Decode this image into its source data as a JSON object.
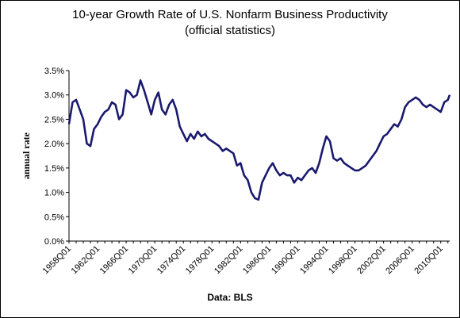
{
  "chart_data": {
    "type": "line",
    "title": "10-year Growth Rate of U.S. Nonfarm Business Productivity",
    "subtitle": "(official statistics)",
    "xlabel": "",
    "ylabel": "annual rate",
    "source": "Data: BLS",
    "ylim": [
      0,
      3.5
    ],
    "y_ticks": [
      "0.0%",
      "0.5%",
      "1.0%",
      "1.5%",
      "2.0%",
      "2.5%",
      "3.0%",
      "3.5%"
    ],
    "x_ticks": [
      "1958Q01",
      "1962Q01",
      "1966Q01",
      "1970Q01",
      "1974Q01",
      "1978Q01",
      "1982Q01",
      "1986Q01",
      "1990Q01",
      "1994Q01",
      "1998Q01",
      "2002Q01",
      "2006Q01",
      "2010Q01"
    ],
    "grid": false,
    "line_color": "#1a1a6e",
    "series": [
      {
        "x": [
          1958.0,
          1958.5,
          1959.0,
          1959.5,
          1960.0,
          1960.5,
          1961.0,
          1961.5,
          1962.0,
          1962.5,
          1963.0,
          1963.5,
          1964.0,
          1964.5,
          1965.0,
          1965.5,
          1966.0,
          1966.5,
          1967.0,
          1967.5,
          1968.0,
          1968.5,
          1969.0,
          1969.5,
          1970.0,
          1970.5,
          1971.0,
          1971.5,
          1972.0,
          1972.5,
          1973.0,
          1973.5,
          1974.0,
          1974.5,
          1975.0,
          1975.5,
          1976.0,
          1976.5,
          1977.0,
          1977.5,
          1978.0,
          1978.5,
          1979.0,
          1979.5,
          1980.0,
          1980.5,
          1981.0,
          1981.5,
          1982.0,
          1982.5,
          1983.0,
          1983.5,
          1984.0,
          1984.5,
          1985.0,
          1985.5,
          1986.0,
          1986.5,
          1987.0,
          1987.5,
          1988.0,
          1988.5,
          1989.0,
          1989.5,
          1990.0,
          1990.5,
          1991.0,
          1991.5,
          1992.0,
          1992.5,
          1993.0,
          1993.5,
          1994.0,
          1994.5,
          1995.0,
          1995.5,
          1996.0,
          1996.5,
          1997.0,
          1997.5,
          1998.0,
          1998.5,
          1999.0,
          1999.5,
          2000.0,
          2000.5,
          2001.0,
          2001.5,
          2002.0,
          2002.5,
          2003.0,
          2003.5,
          2004.0,
          2004.5,
          2005.0,
          2005.5,
          2006.0,
          2006.5,
          2007.0,
          2007.5,
          2008.0,
          2008.5,
          2009.0,
          2009.5,
          2010.0,
          2010.5,
          2011.0,
          2011.25
        ],
        "values": [
          2.4,
          2.85,
          2.9,
          2.7,
          2.5,
          2.0,
          1.95,
          2.3,
          2.4,
          2.55,
          2.65,
          2.7,
          2.85,
          2.8,
          2.5,
          2.6,
          3.1,
          3.05,
          2.95,
          3.0,
          3.3,
          3.1,
          2.85,
          2.6,
          2.9,
          3.05,
          2.7,
          2.6,
          2.8,
          2.9,
          2.7,
          2.35,
          2.2,
          2.05,
          2.2,
          2.1,
          2.25,
          2.15,
          2.2,
          2.1,
          2.05,
          2.0,
          1.95,
          1.85,
          1.9,
          1.85,
          1.8,
          1.55,
          1.6,
          1.35,
          1.25,
          1.0,
          0.88,
          0.85,
          1.2,
          1.35,
          1.5,
          1.6,
          1.45,
          1.35,
          1.4,
          1.35,
          1.35,
          1.2,
          1.3,
          1.25,
          1.35,
          1.45,
          1.5,
          1.4,
          1.6,
          1.9,
          2.15,
          2.05,
          1.7,
          1.65,
          1.7,
          1.6,
          1.55,
          1.5,
          1.45,
          1.45,
          1.5,
          1.55,
          1.65,
          1.75,
          1.85,
          2.0,
          2.15,
          2.2,
          2.3,
          2.4,
          2.35,
          2.5,
          2.75,
          2.85,
          2.9,
          2.95,
          2.9,
          2.8,
          2.75,
          2.8,
          2.75,
          2.7,
          2.65,
          2.85,
          2.9,
          3.0
        ]
      }
    ]
  }
}
